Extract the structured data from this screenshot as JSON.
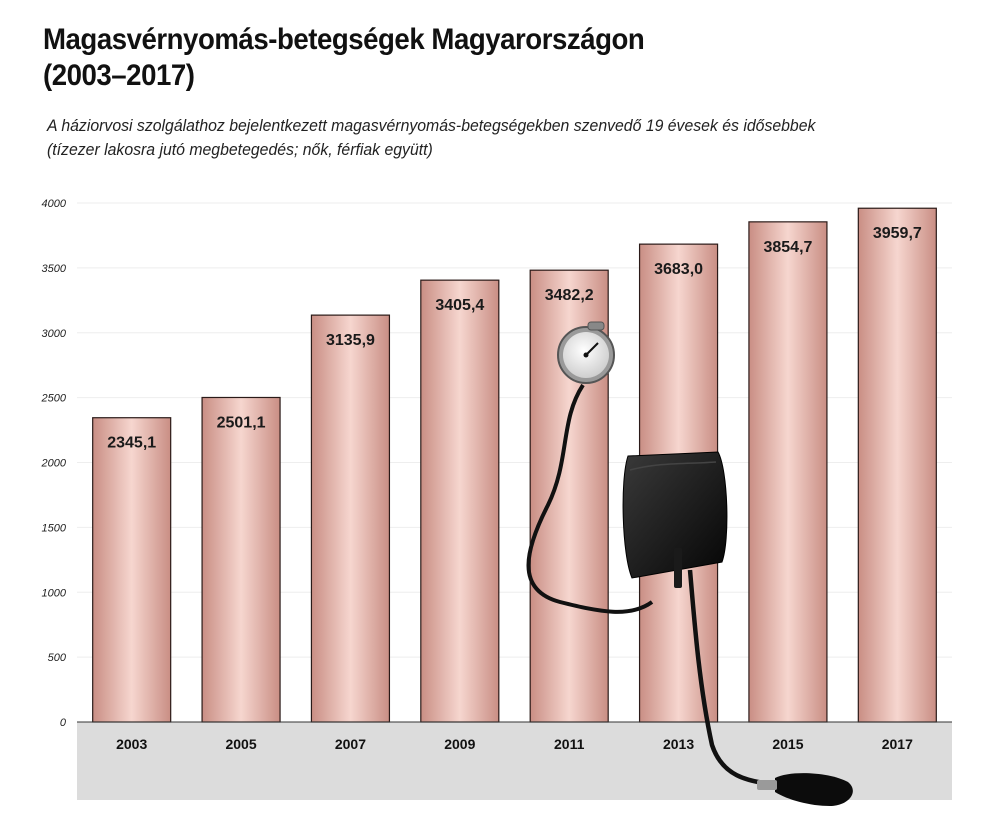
{
  "header": {
    "title_line1": "Magasvérnyomás-betegségek Magyarországon",
    "title_line2": "(2003–2017)",
    "subtitle_line1": "A háziorvosi szolgálathoz bejelentkezett magasvérnyomás-betegségekben szenvedő 19 évesek és idősebbek",
    "subtitle_line2": "(tízezer lakosra jutó megbetegedés; nők, férfiak együtt)"
  },
  "chart_data": {
    "type": "bar",
    "title": "Magasvérnyomás-betegségek Magyarországon (2003–2017)",
    "categories": [
      "2003",
      "2005",
      "2007",
      "2009",
      "2011",
      "2013",
      "2015",
      "2017"
    ],
    "values": [
      2345.1,
      2501.1,
      3135.9,
      3405.4,
      3482.2,
      3683.0,
      3854.7,
      3959.7
    ],
    "value_labels": [
      "2345,1",
      "2501,1",
      "3135,9",
      "3405,4",
      "3482,2",
      "3683,0",
      "3854,7",
      "3959,7"
    ],
    "y_ticks": [
      0,
      500,
      1000,
      1500,
      2000,
      2500,
      3000,
      3500,
      4000
    ],
    "ylim": [
      0,
      4000
    ],
    "grid": true,
    "legend": "none",
    "colors": {
      "bar_center": "#f6d6cf",
      "bar_edge": "#c98e84",
      "bar_stroke": "#2a1a18",
      "grid": "#eeeeee",
      "category_band": "#dcdcdc"
    }
  },
  "decoration": {
    "image": "blood-pressure-monitor-icon"
  }
}
